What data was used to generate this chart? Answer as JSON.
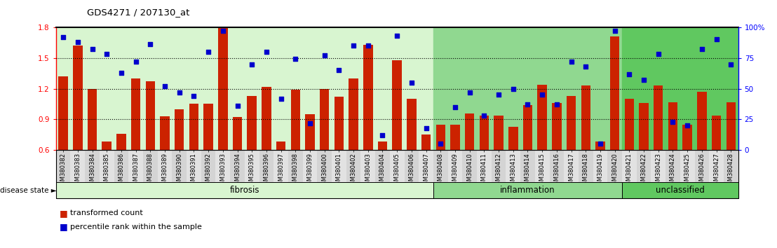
{
  "title": "GDS4271 / 207130_at",
  "samples": [
    "GSM380382",
    "GSM380383",
    "GSM380384",
    "GSM380385",
    "GSM380386",
    "GSM380387",
    "GSM380388",
    "GSM380389",
    "GSM380390",
    "GSM380391",
    "GSM380392",
    "GSM380393",
    "GSM380394",
    "GSM380395",
    "GSM380396",
    "GSM380397",
    "GSM380398",
    "GSM380399",
    "GSM380400",
    "GSM380401",
    "GSM380402",
    "GSM380403",
    "GSM380404",
    "GSM380405",
    "GSM380406",
    "GSM380407",
    "GSM380408",
    "GSM380409",
    "GSM380410",
    "GSM380411",
    "GSM380412",
    "GSM380413",
    "GSM380414",
    "GSM380415",
    "GSM380416",
    "GSM380417",
    "GSM380418",
    "GSM380419",
    "GSM380420",
    "GSM380421",
    "GSM380422",
    "GSM380423",
    "GSM380424",
    "GSM380425",
    "GSM380426",
    "GSM380427",
    "GSM380428"
  ],
  "bar_values": [
    1.32,
    1.62,
    1.2,
    0.68,
    0.76,
    1.3,
    1.27,
    0.93,
    1.0,
    1.05,
    1.05,
    1.79,
    0.92,
    1.13,
    1.22,
    0.68,
    1.19,
    0.95,
    1.2,
    1.12,
    1.3,
    1.63,
    0.68,
    1.48,
    1.1,
    0.75,
    0.85,
    0.85,
    0.96,
    0.94,
    0.94,
    0.83,
    1.04,
    1.24,
    1.06,
    1.13,
    1.23,
    0.68,
    1.71,
    1.1,
    1.06,
    1.23,
    1.07,
    0.85,
    1.17,
    0.94,
    1.07
  ],
  "dot_values": [
    92,
    88,
    82,
    78,
    63,
    72,
    86,
    52,
    47,
    44,
    80,
    97,
    36,
    70,
    80,
    42,
    74,
    22,
    77,
    65,
    85,
    85,
    12,
    93,
    55,
    18,
    5,
    35,
    47,
    28,
    45,
    50,
    37,
    45,
    37,
    72,
    68,
    5,
    97,
    62,
    57,
    78,
    23,
    20,
    82,
    90,
    70
  ],
  "groups": [
    {
      "label": "fibrosis",
      "start": 0,
      "end": 26,
      "color": "#d8f5d0"
    },
    {
      "label": "inflammation",
      "start": 26,
      "end": 39,
      "color": "#90d890"
    },
    {
      "label": "unclassified",
      "start": 39,
      "end": 47,
      "color": "#60c860"
    }
  ],
  "bar_color": "#cc2200",
  "dot_color": "#0000cc",
  "ymin": 0.6,
  "ymax": 1.8,
  "yticks_left": [
    0.6,
    0.9,
    1.2,
    1.5,
    1.8
  ],
  "yticks_right": [
    0,
    25,
    50,
    75,
    100
  ],
  "ytick_right_labels": [
    "0",
    "25",
    "50",
    "75",
    "100%"
  ],
  "hlines": [
    0.9,
    1.2,
    1.5
  ],
  "bar_width": 0.65
}
